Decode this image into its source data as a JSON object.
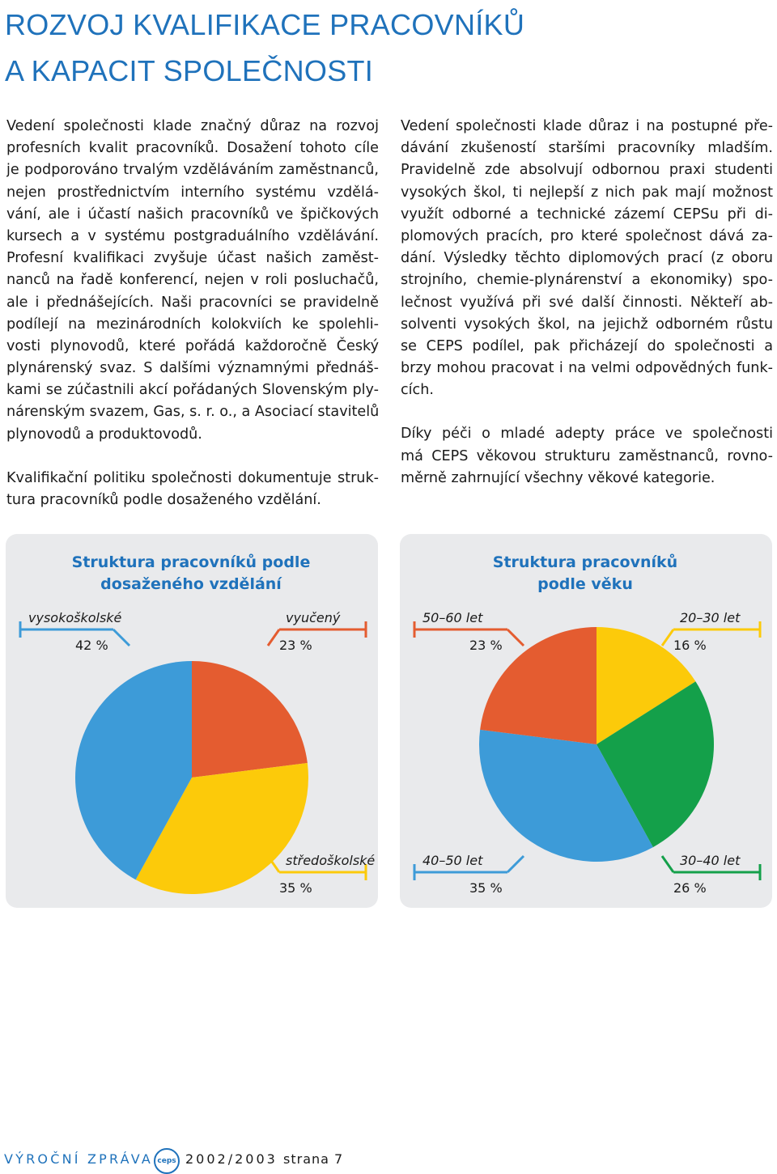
{
  "header": {
    "title": [
      "ROZVOJ KVALIFIKACE PRACOVNÍKŮ",
      "A KAPACIT SPOLEČNOSTI"
    ]
  },
  "left_column": [
    [
      "Vedení společnosti klade značný důraz na rozvoj",
      "profesních kvalit pracovníků. Dosažení tohoto cíle",
      "je podporováno trvalým vzděláváním zaměstnanců,",
      "nejen prostřednictvím interního systému vzdělá-",
      "vání, ale i účastí našich pracovníků ve špičkových",
      "kursech a v systému postgraduálního vzdělávání.",
      "Profesní kvalifikaci zvyšuje účast našich zaměst-",
      "nanců na řadě konferencí, nejen v roli posluchačů,",
      "ale i přednášejících. Naši pracovníci se pravidelně",
      "podílejí na mezinárodních kolokviích ke spolehli-",
      "vosti plynovodů, které pořádá každoročně Český",
      "plynárenský svaz. S dalšími významnými přednáš-",
      "kami se zúčastnili akcí pořádaných Slovenským ply-",
      "nárenským svazem, Gas, s. r. o., a Asociací stavitelů",
      "plynovodů a produktovodů."
    ],
    [
      "Kvalifikační politiku společnosti dokumentuje struk-",
      "tura pracovníků podle dosaženého vzdělání."
    ]
  ],
  "right_column": [
    [
      "Vedení společnosti klade důraz i na postupné pře-",
      "dávání zkušeností staršími pracovníky mladším.",
      "Pravidelně zde absolvují odbornou praxi studenti",
      "vysokých škol, ti nejlepší z nich pak mají možnost",
      "využít odborné a technické zázemí CEPSu při di-",
      "plomových pracích, pro které společnost dává za-",
      "dání. Výsledky těchto diplomových prací (z oboru",
      "strojního, chemie-plynárenství a ekonomiky) spo-",
      "lečnost využívá při své další činnosti. Někteří ab-",
      "solventi vysokých škol, na jejichž odborném růstu",
      "se CEPS podílel, pak přicházejí do společnosti a",
      "brzy mohou pracovat i na velmi odpovědných funk-",
      "cích."
    ],
    [
      "Díky péči o mladé adepty práce ve společnosti",
      "má CEPS věkovou strukturu zaměstnanců, rovno-",
      "měrně zahrnující všechny věkové kategorie."
    ]
  ],
  "chart_data": [
    {
      "type": "pie",
      "title": [
        "Struktura pracovníků podle",
        "dosaženého vzdělání"
      ],
      "labels": [
        "vyučený",
        "středoškolské",
        "vysokoškolské"
      ],
      "values": [
        23,
        35,
        42
      ],
      "value_labels": [
        "23 %",
        "35 %",
        "42 %"
      ],
      "colors": [
        "#e45c30",
        "#fcca0a",
        "#3d9bd8"
      ],
      "label_corners": [
        "top-right",
        "bottom-right",
        "top-left"
      ]
    },
    {
      "type": "pie",
      "title": [
        "Struktura pracovníků",
        "podle věku"
      ],
      "labels": [
        "20–30 let",
        "30–40 let",
        "40–50 let",
        "50–60 let"
      ],
      "values": [
        16,
        26,
        35,
        23
      ],
      "value_labels": [
        "16 %",
        "26 %",
        "35 %",
        "23 %"
      ],
      "colors": [
        "#fcca0a",
        "#14a04a",
        "#3d9bd8",
        "#e45c30"
      ],
      "label_corners": [
        "top-right",
        "bottom-right",
        "bottom-left",
        "top-left"
      ]
    }
  ],
  "footer": {
    "report": "VÝROČNÍ ZPRÁVA",
    "logo": "ceps",
    "year": "2002/2003",
    "page": "strana 7"
  }
}
